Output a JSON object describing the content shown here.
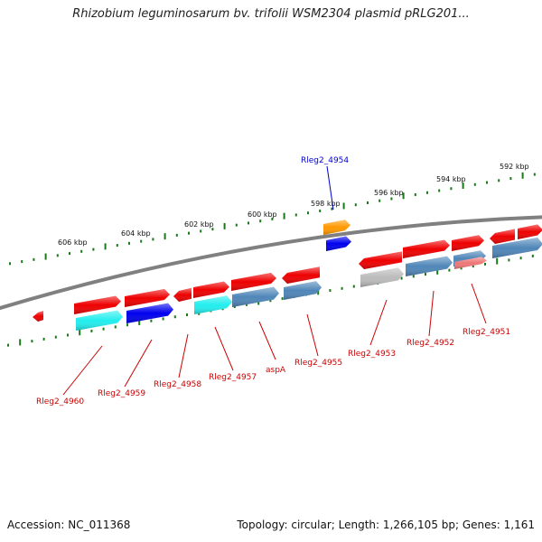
{
  "title": "Rhizobium leguminosarum bv. trifolii WSM2304 plasmid pRLG201...",
  "footer": {
    "accession": "Accession: NC_011368",
    "summary": "Topology: circular; Length: 1,266,105 bp; Genes: 1,161"
  },
  "colors": {
    "backbone": "#808080",
    "tick": "#1a7a1a",
    "gene_red": "#ee0000",
    "gene_blue": "#0000ee",
    "gene_cyan": "#22eeee",
    "gene_steel": "#4f86b8",
    "gene_orange": "#ff9900",
    "gene_grey": "#bbbbbb",
    "gene_pink": "#ee7777",
    "label_red": "#cc0000",
    "label_blue": "#0000cc"
  },
  "kbp_labels": [
    "606 kbp",
    "604 kbp",
    "602 kbp",
    "600 kbp",
    "598 kbp",
    "596 kbp",
    "594 kbp",
    "592 kbp"
  ],
  "gene_labels": [
    "Rleg2_4960",
    "Rleg2_4959",
    "Rleg2_4958",
    "Rleg2_4957",
    "aspA",
    "Rleg2_4955",
    "Rleg2_4954",
    "Rleg2_4953",
    "Rleg2_4952",
    "Rleg2_4951"
  ]
}
